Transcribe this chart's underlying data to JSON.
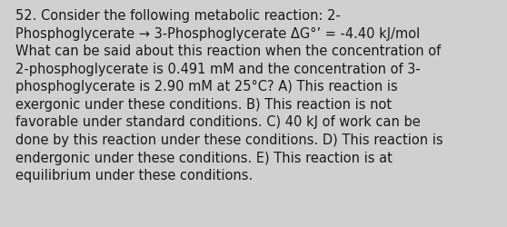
{
  "background_color": "#d0d0d0",
  "text_color": "#1a1a1a",
  "font_size": 10.5,
  "lines": [
    "52. Consider the following metabolic reaction: 2-",
    "Phosphoglycerate → 3-Phosphoglycerate ΔG°’ = -4.40 kJ/mol",
    "What can be said about this reaction when the concentration of",
    "2-phosphoglycerate is 0.491 mM and the concentration of 3-",
    "phosphoglycerate is 2.90 mM at 25°C? A) This reaction is",
    "exergonic under these conditions. B) This reaction is not",
    "favorable under standard conditions. C) 40 kJ of work can be",
    "done by this reaction under these conditions. D) This reaction is",
    "endergonic under these conditions. E) This reaction is at",
    "equilibrium under these conditions."
  ]
}
